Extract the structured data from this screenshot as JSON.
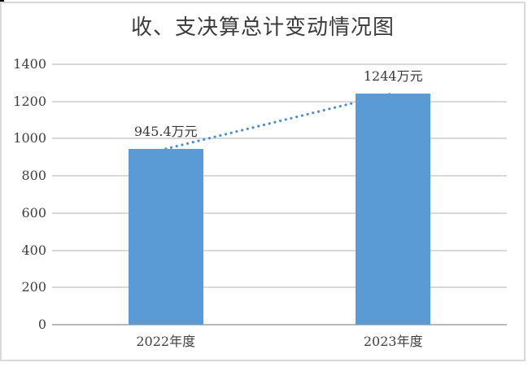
{
  "chart_data": {
    "type": "bar",
    "title": "收、支决算总计变动情况图",
    "categories": [
      "2022年度",
      "2023年度"
    ],
    "values": [
      945.4,
      1244
    ],
    "data_labels": [
      "945.4万元",
      "1244万元"
    ],
    "unit": "万元",
    "ylim": [
      0,
      1400
    ],
    "ytick_step": 200,
    "yticks": [
      0,
      200,
      400,
      600,
      800,
      1000,
      1200,
      1400
    ],
    "xlabel": "",
    "ylabel": "",
    "grid": true,
    "legend_position": "none",
    "connector_line_style": "dotted",
    "colors": {
      "bar": "#5b9bd5",
      "connector": "#4f8ecd",
      "gridline": "#d9d9d9",
      "axis_line": "#b9b9b9",
      "title_text": "#3b3b3b",
      "axis_text": "#404040",
      "frame_border": "#d9d9d9"
    }
  }
}
